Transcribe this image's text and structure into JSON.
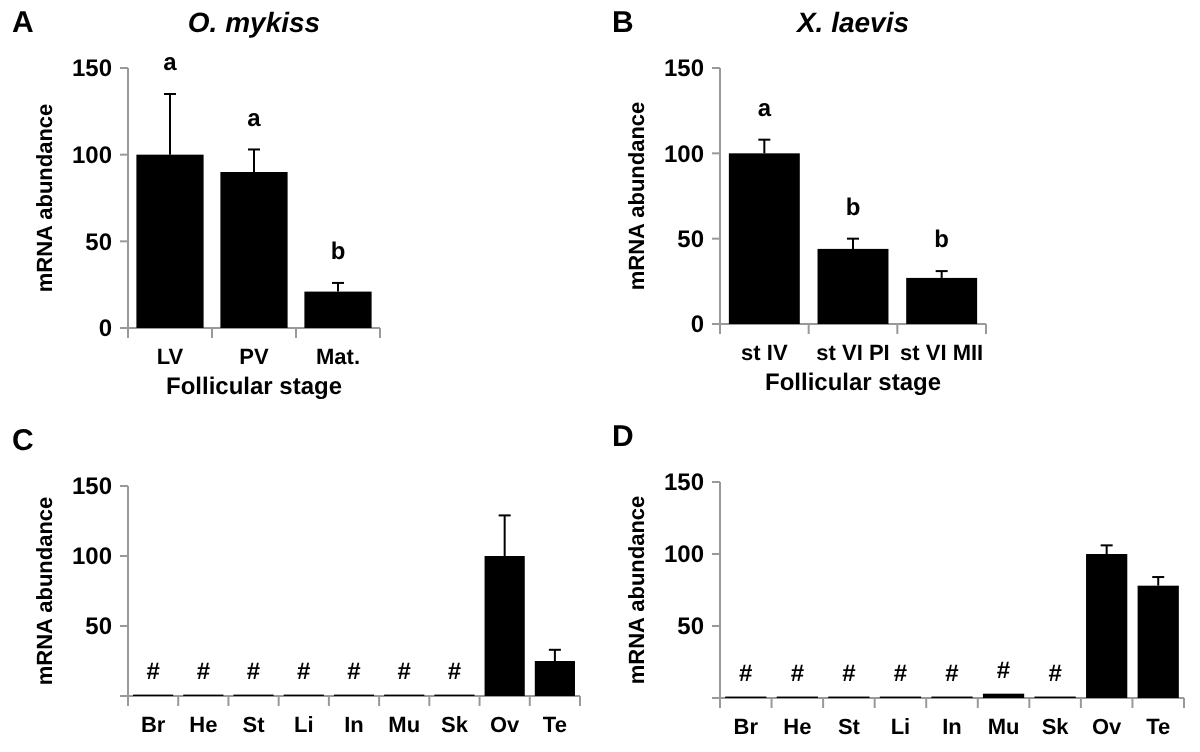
{
  "chart_data": [
    {
      "type": "bar",
      "title": "O. mykiss",
      "xlabel": "Follicular stage",
      "ylabel": "mRNA abundance",
      "categories": [
        "LV",
        "PV",
        "Mat."
      ],
      "values": [
        100,
        90,
        21
      ],
      "color": "#000000",
      "errors": [
        [
          100,
          135
        ],
        [
          90,
          103
        ],
        [
          21,
          26
        ]
      ],
      "ylim": [
        0,
        150
      ],
      "yticks": [
        0,
        50,
        100,
        150
      ],
      "annotations": [
        "A",
        "a",
        "a",
        "b"
      ]
    },
    {
      "type": "bar",
      "title": "X. laevis",
      "xlabel": "Follicular stage",
      "ylabel": "mRNA abundance",
      "categories": [
        "st IV",
        "st VI PI",
        "st VI MII"
      ],
      "values": [
        100,
        44,
        27
      ],
      "color": "#000000",
      "errors": [
        [
          100,
          108
        ],
        [
          44,
          50
        ],
        [
          27,
          31
        ]
      ],
      "ylim": [
        0,
        150
      ],
      "yticks": [
        0,
        50,
        100,
        150
      ],
      "annotations": [
        "B",
        "a",
        "b",
        "b"
      ]
    },
    {
      "type": "bar",
      "ylabel": "mRNA abundance",
      "categories": [
        "Br",
        "He",
        "St",
        "Li",
        "In",
        "Mu",
        "Sk",
        "Ov",
        "Te"
      ],
      "values": [
        1,
        1,
        1,
        1,
        1,
        1,
        1,
        100,
        25
      ],
      "color": "#000000",
      "errors": [
        null,
        null,
        null,
        null,
        null,
        null,
        null,
        [
          100,
          129
        ],
        [
          25,
          33
        ]
      ],
      "ylim": [
        0,
        150
      ],
      "yticks": [
        {
          "value": 0,
          "label": null
        },
        50,
        100,
        150
      ],
      "annotations": [
        "C",
        "#",
        "#",
        "#",
        "#",
        "#",
        "#",
        "#"
      ]
    },
    {
      "type": "bar",
      "ylabel": "mRNA abundance",
      "categories": [
        "Br",
        "He",
        "St",
        "Li",
        "In",
        "Mu",
        "Sk",
        "Ov",
        "Te"
      ],
      "values": [
        1,
        1,
        1,
        1,
        1,
        3,
        1,
        100,
        78
      ],
      "color": "#000000",
      "errors": [
        null,
        null,
        null,
        null,
        null,
        null,
        null,
        [
          100,
          106
        ],
        [
          78,
          84
        ]
      ],
      "ylim": [
        0,
        150
      ],
      "yticks": [
        {
          "value": 0,
          "label": null
        },
        50,
        100,
        150
      ],
      "annotations": [
        "D",
        "#",
        "#",
        "#",
        "#",
        "#",
        "#",
        "#"
      ]
    }
  ]
}
